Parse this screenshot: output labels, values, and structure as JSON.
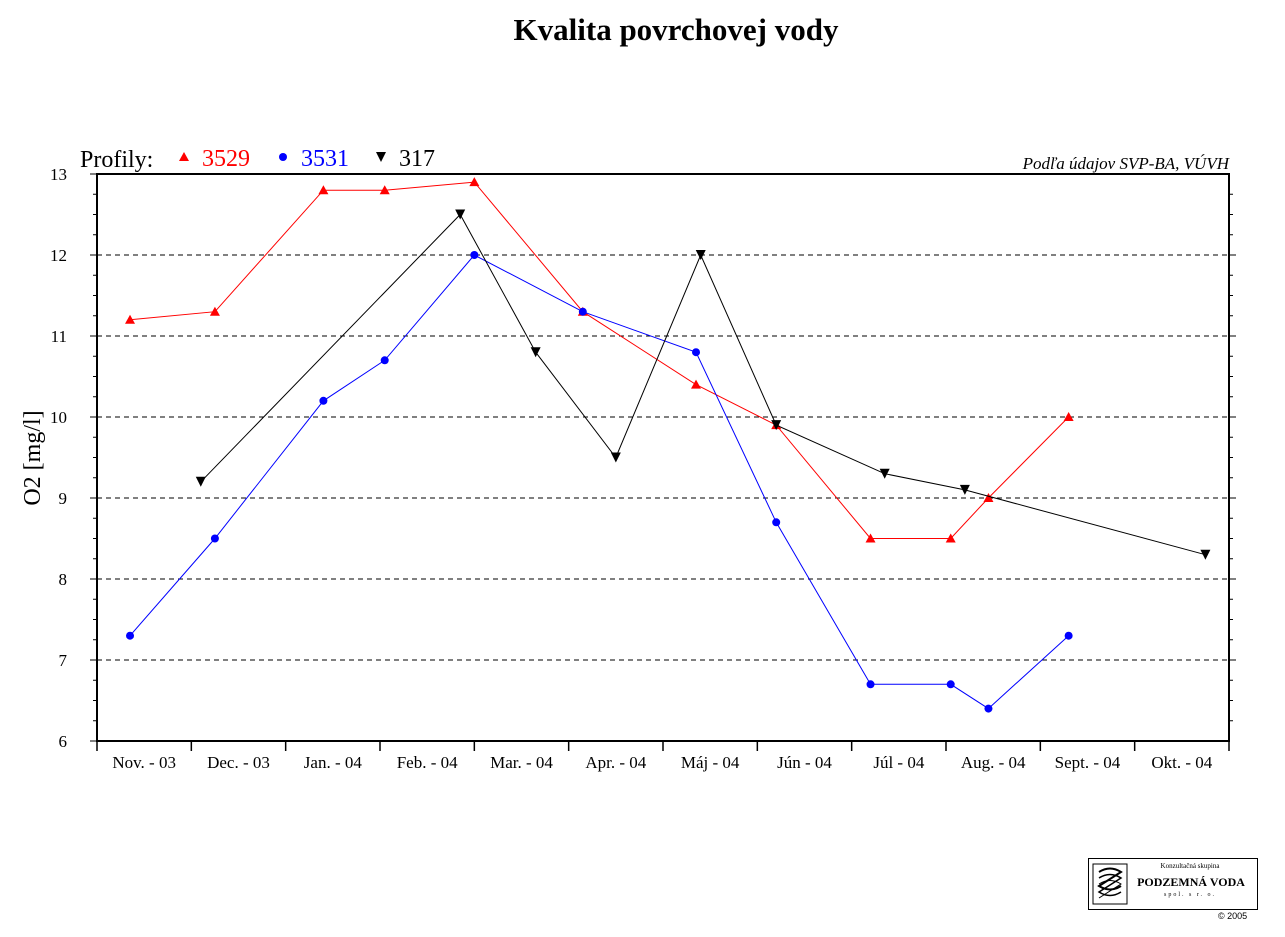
{
  "chart_data": {
    "type": "line",
    "title": "Kvalita povrchovej vody",
    "ylabel": "O2 [mg/l]",
    "xlabel": "",
    "legend_prefix": "Profily:",
    "source_note": "Podľa údajov SVP-BA, VÚVH",
    "ylim": [
      6,
      13
    ],
    "yticks": [
      "6",
      "7",
      "8",
      "9",
      "10",
      "11",
      "12",
      "13"
    ],
    "grid": "horizontal dashed",
    "categories": [
      "Nov. - 03",
      "Dec. - 03",
      "Jan. - 04",
      "Feb. - 04",
      "Mar. - 04",
      "Apr. - 04",
      "Máj - 04",
      "Jún - 04",
      "Júl - 04",
      "Aug. - 04",
      "Sept. - 04",
      "Okt. - 04"
    ],
    "series": [
      {
        "name": "3529",
        "color": "#ff0000",
        "marker": "triangle-up",
        "points": [
          {
            "x": 0.35,
            "y": 11.2
          },
          {
            "x": 1.25,
            "y": 11.3
          },
          {
            "x": 2.4,
            "y": 12.8
          },
          {
            "x": 3.05,
            "y": 12.8
          },
          {
            "x": 4.0,
            "y": 12.9
          },
          {
            "x": 5.15,
            "y": 11.3
          },
          {
            "x": 6.35,
            "y": 10.4
          },
          {
            "x": 7.2,
            "y": 9.9
          },
          {
            "x": 8.2,
            "y": 8.5
          },
          {
            "x": 9.05,
            "y": 8.5
          },
          {
            "x": 9.45,
            "y": 9.0
          },
          {
            "x": 10.3,
            "y": 10.0
          }
        ]
      },
      {
        "name": "3531",
        "color": "#0000ff",
        "marker": "circle",
        "points": [
          {
            "x": 0.35,
            "y": 7.3
          },
          {
            "x": 1.25,
            "y": 8.5
          },
          {
            "x": 2.4,
            "y": 10.2
          },
          {
            "x": 3.05,
            "y": 10.7
          },
          {
            "x": 4.0,
            "y": 12.0
          },
          {
            "x": 5.15,
            "y": 11.3
          },
          {
            "x": 6.35,
            "y": 10.8
          },
          {
            "x": 7.2,
            "y": 8.7
          },
          {
            "x": 8.2,
            "y": 6.7
          },
          {
            "x": 9.05,
            "y": 6.7
          },
          {
            "x": 9.45,
            "y": 6.4
          },
          {
            "x": 10.3,
            "y": 7.3
          }
        ]
      },
      {
        "name": "317",
        "color": "#000000",
        "marker": "triangle-down",
        "points": [
          {
            "x": 1.1,
            "y": 9.2
          },
          {
            "x": 3.85,
            "y": 12.5
          },
          {
            "x": 4.65,
            "y": 10.8
          },
          {
            "x": 5.5,
            "y": 9.5
          },
          {
            "x": 6.4,
            "y": 12.0
          },
          {
            "x": 7.2,
            "y": 9.9
          },
          {
            "x": 8.35,
            "y": 9.3
          },
          {
            "x": 9.2,
            "y": 9.1
          },
          {
            "x": 11.75,
            "y": 8.3
          }
        ]
      }
    ]
  },
  "logo": {
    "top_text": "Konzultačná skupina",
    "name": "PODZEMNÁ VODA",
    "sub_text": "spol. s r. o.",
    "copyright": "© 2005",
    "icon": "groundwater-wave-logo-icon"
  }
}
